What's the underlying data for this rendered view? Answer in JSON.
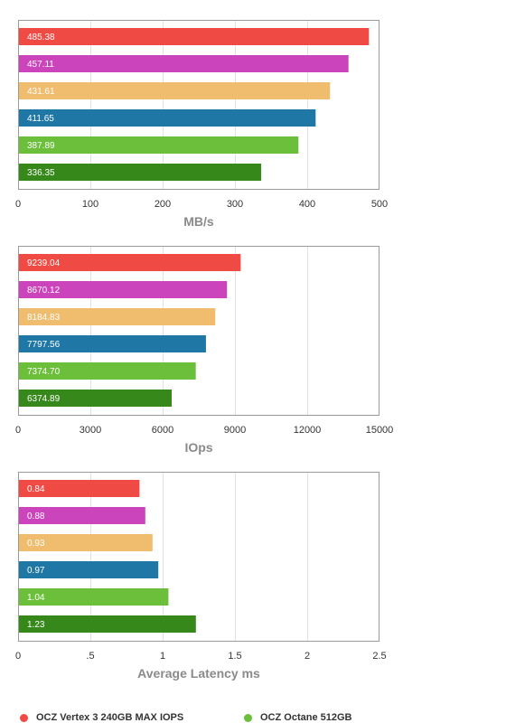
{
  "colors": {
    "series": [
      "#f04a44",
      "#cc44bb",
      "#f0bc6e",
      "#1f77a6",
      "#6cbf3a",
      "#36881b"
    ],
    "grid": "#e2e2e2",
    "frame": "#9a9a9a",
    "tick_text": "#333333",
    "axis_title": "#8a8a8a"
  },
  "legend": {
    "items": [
      {
        "label": "OCZ Vertex 3 240GB MAX IOPS",
        "color": "#f04a44"
      },
      {
        "label": "OCZ Octane 512GB",
        "color": "#6cbf3a"
      }
    ]
  },
  "chart_data": [
    {
      "type": "bar",
      "orientation": "horizontal",
      "values": [
        485.38,
        457.11,
        431.61,
        411.65,
        387.89,
        336.35
      ],
      "value_labels": [
        "485.38",
        "457.11",
        "431.61",
        "411.65",
        "387.89",
        "336.35"
      ],
      "xlim": [
        0,
        500
      ],
      "xticks": [
        0,
        100,
        200,
        300,
        400,
        500
      ],
      "xtick_labels": [
        "0",
        "100",
        "200",
        "300",
        "400",
        "500"
      ],
      "xlabel": "MB/s",
      "grid": true
    },
    {
      "type": "bar",
      "orientation": "horizontal",
      "values": [
        9239.04,
        8670.12,
        8184.83,
        7797.56,
        7374.7,
        6374.89
      ],
      "value_labels": [
        "9239.04",
        "8670.12",
        "8184.83",
        "7797.56",
        "7374.70",
        "6374.89"
      ],
      "xlim": [
        0,
        15000
      ],
      "xticks": [
        0,
        3000,
        6000,
        9000,
        12000,
        15000
      ],
      "xtick_labels": [
        "0",
        "3000",
        "6000",
        "9000",
        "12000",
        "15000"
      ],
      "xlabel": "IOps",
      "grid": true
    },
    {
      "type": "bar",
      "orientation": "horizontal",
      "values": [
        0.84,
        0.88,
        0.93,
        0.97,
        1.04,
        1.23
      ],
      "value_labels": [
        "0.84",
        "0.88",
        "0.93",
        "0.97",
        "1.04",
        "1.23"
      ],
      "xlim": [
        0,
        2.5
      ],
      "xticks": [
        0,
        0.5,
        1,
        1.5,
        2,
        2.5
      ],
      "xtick_labels": [
        "0",
        ".5",
        "1",
        "1.5",
        "2",
        "2.5"
      ],
      "xlabel": "Average Latency ms",
      "grid": true
    }
  ]
}
